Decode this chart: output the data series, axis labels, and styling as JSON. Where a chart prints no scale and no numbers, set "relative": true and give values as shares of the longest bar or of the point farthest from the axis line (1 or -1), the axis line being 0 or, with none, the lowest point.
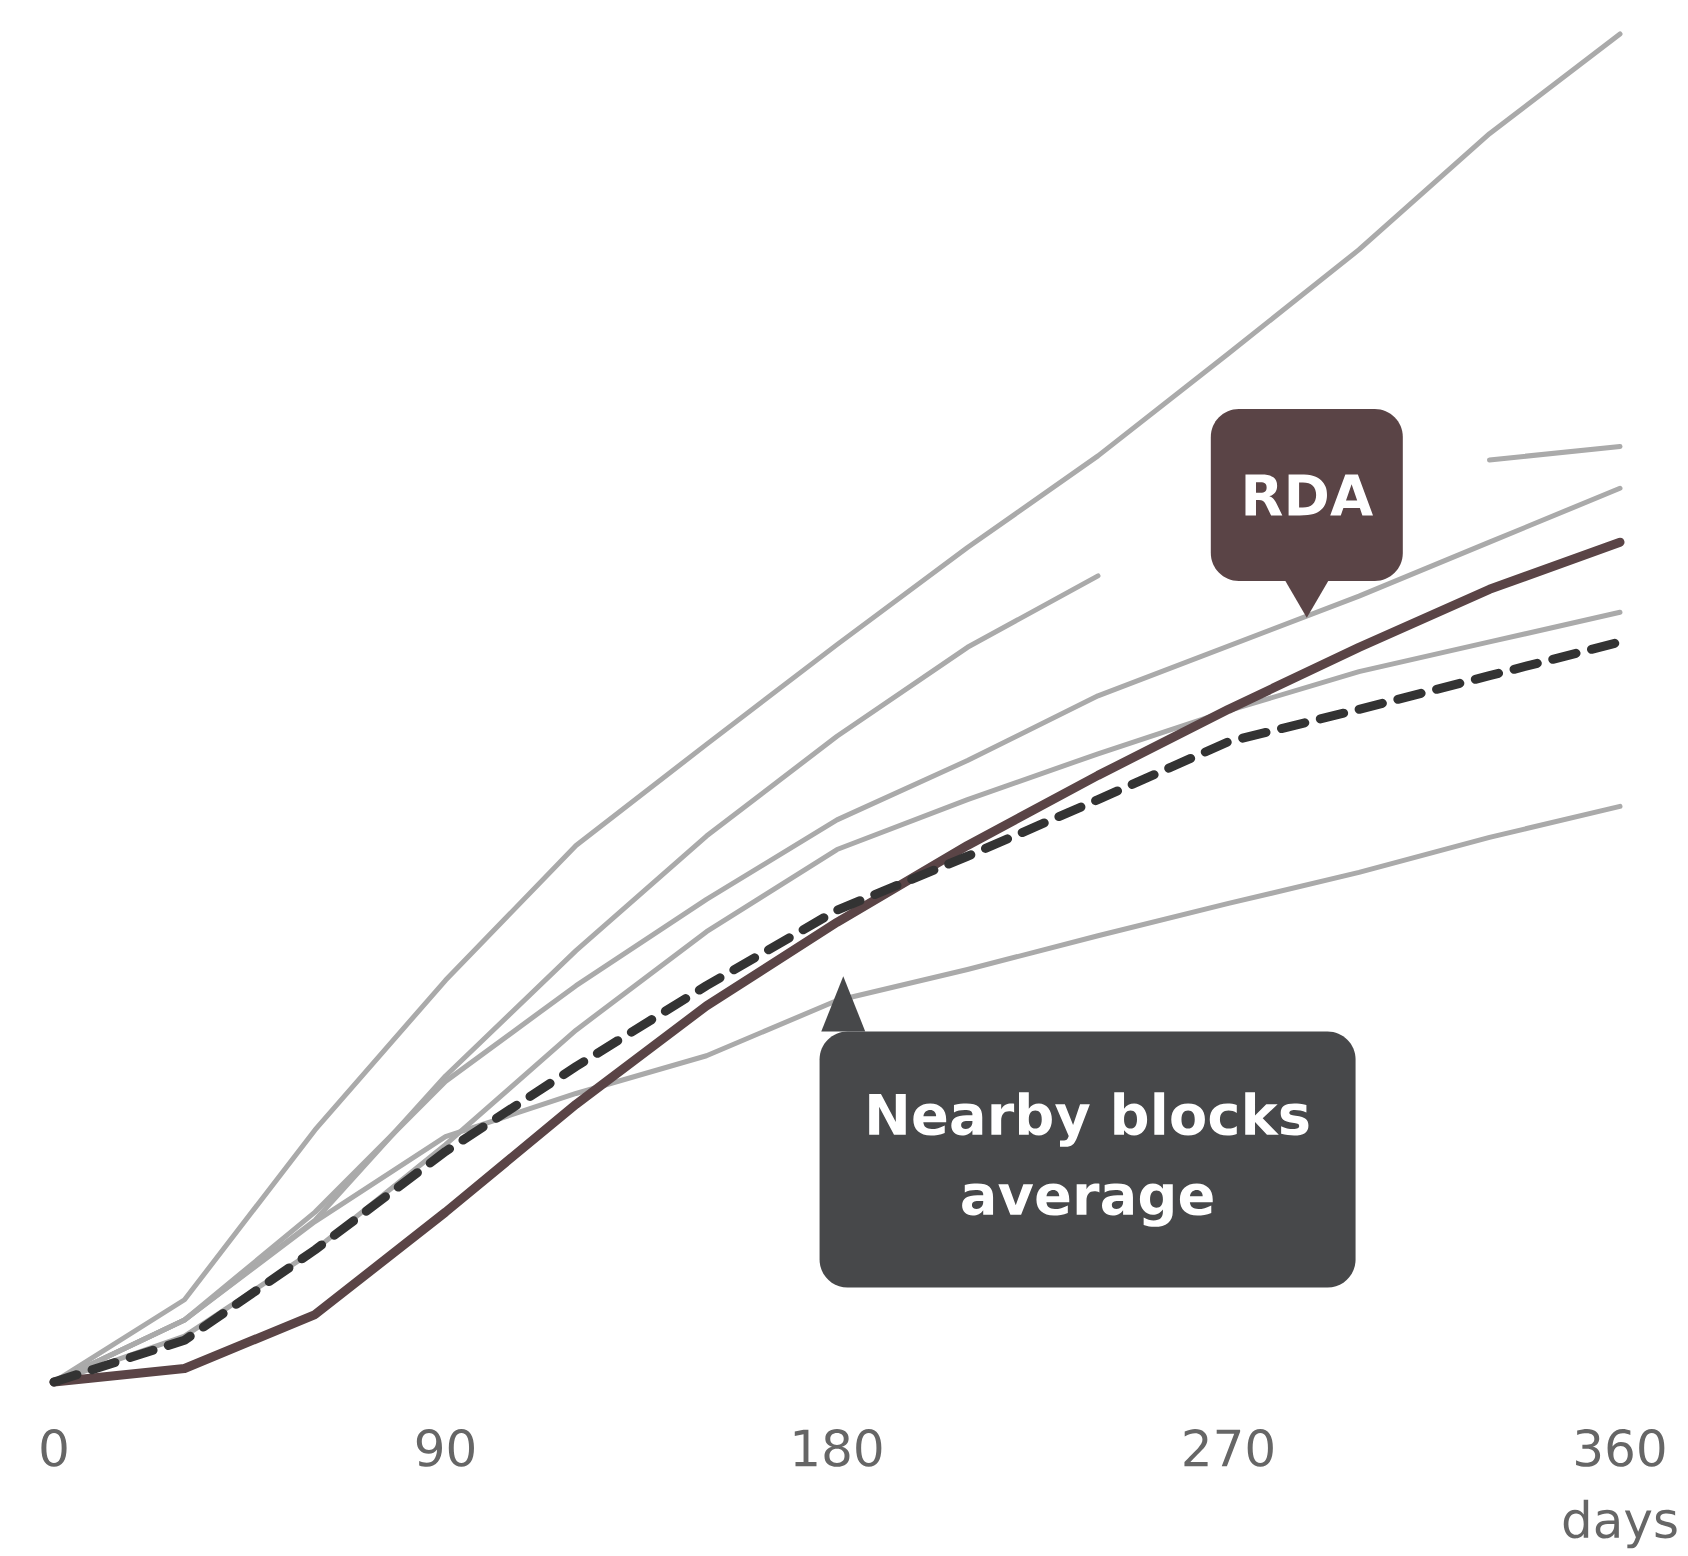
{
  "chart_data": {
    "type": "line",
    "relative": true,
    "xlabel": "days",
    "xlim": [
      0,
      360
    ],
    "xticks": [
      0,
      90,
      180,
      270,
      360
    ],
    "tick_labels": "x",
    "grid": false,
    "marker": "none",
    "x": [
      0,
      30,
      60,
      90,
      120,
      150,
      180,
      210,
      240,
      270,
      300,
      330,
      360
    ],
    "series": [
      {
        "color": "#aaaaaa",
        "values": [
          0,
          0.061,
          0.187,
          0.298,
          0.398,
          0.473,
          0.547,
          0.619,
          0.687,
          0.763,
          0.84,
          0.926,
          1
        ]
      },
      {
        "color": "#aaaaaa",
        "values": [
          0,
          0.046,
          0.12,
          0.227,
          0.32,
          0.405,
          0.479,
          0.545,
          0.598,
          null,
          null,
          0.684,
          0.694
        ]
      },
      {
        "color": "#aaaaaa",
        "values": [
          0,
          0.046,
          0.126,
          0.223,
          0.294,
          0.358,
          0.417,
          0.461,
          0.509,
          0.546,
          0.583,
          0.623,
          0.663
        ]
      },
      {
        "color": "#aaaaaa",
        "values": [
          0,
          0.034,
          0.098,
          0.176,
          0.261,
          0.334,
          0.395,
          0.432,
          0.466,
          0.498,
          0.527,
          0.549,
          0.571
        ]
      },
      {
        "color": "#aaaaaa",
        "values": [
          0,
          0.046,
          0.119,
          0.182,
          0.214,
          0.242,
          0.283,
          0.306,
          0.331,
          0.355,
          0.378,
          0.404,
          0.427
        ]
      },
      {
        "color": "#5a4446",
        "values": [
          0,
          0.01,
          0.05,
          0.126,
          0.206,
          0.279,
          0.341,
          0.398,
          0.45,
          0.499,
          0.545,
          0.588,
          0.623
        ]
      },
      {
        "color": "#333333",
        "line_style": "dashed",
        "values": [
          0,
          0.031,
          0.098,
          0.171,
          0.234,
          0.294,
          0.35,
          0.39,
          0.432,
          0.475,
          0.499,
          0.524,
          0.549
        ]
      }
    ],
    "annotations": [
      "RDA",
      "Nearby blocks average"
    ]
  }
}
